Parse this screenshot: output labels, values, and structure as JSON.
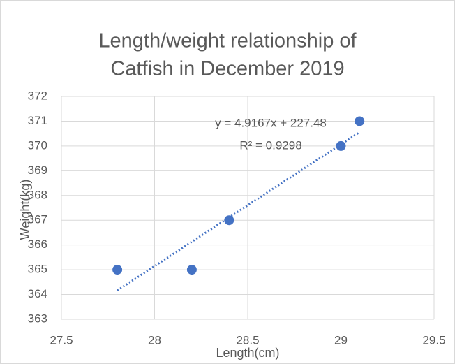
{
  "chart_data": {
    "type": "scatter",
    "title": [
      "Length/weight relationship of",
      "Catfish in December 2019"
    ],
    "x_label": "Length(cm)",
    "y_label": "Weight(kg)",
    "series": [
      {
        "color": "#4472c4",
        "x": [
          27.8,
          28.2,
          28.4,
          29,
          29.1
        ],
        "values": [
          365,
          365,
          367,
          370,
          371
        ]
      }
    ],
    "trendline": {
      "slope": 4.9167,
      "intercept": 227.48,
      "equation": "y = 4.9167x + 227.48",
      "r_squared": "R² = 0.9298"
    },
    "xlim": [
      27.5,
      29.5
    ],
    "xticks": [
      27.5,
      28,
      28.5,
      29,
      29.5
    ],
    "ylim": [
      363,
      372
    ],
    "yticks": [
      363,
      364,
      365,
      366,
      367,
      368,
      369,
      370,
      371,
      372
    ],
    "grid": true
  }
}
